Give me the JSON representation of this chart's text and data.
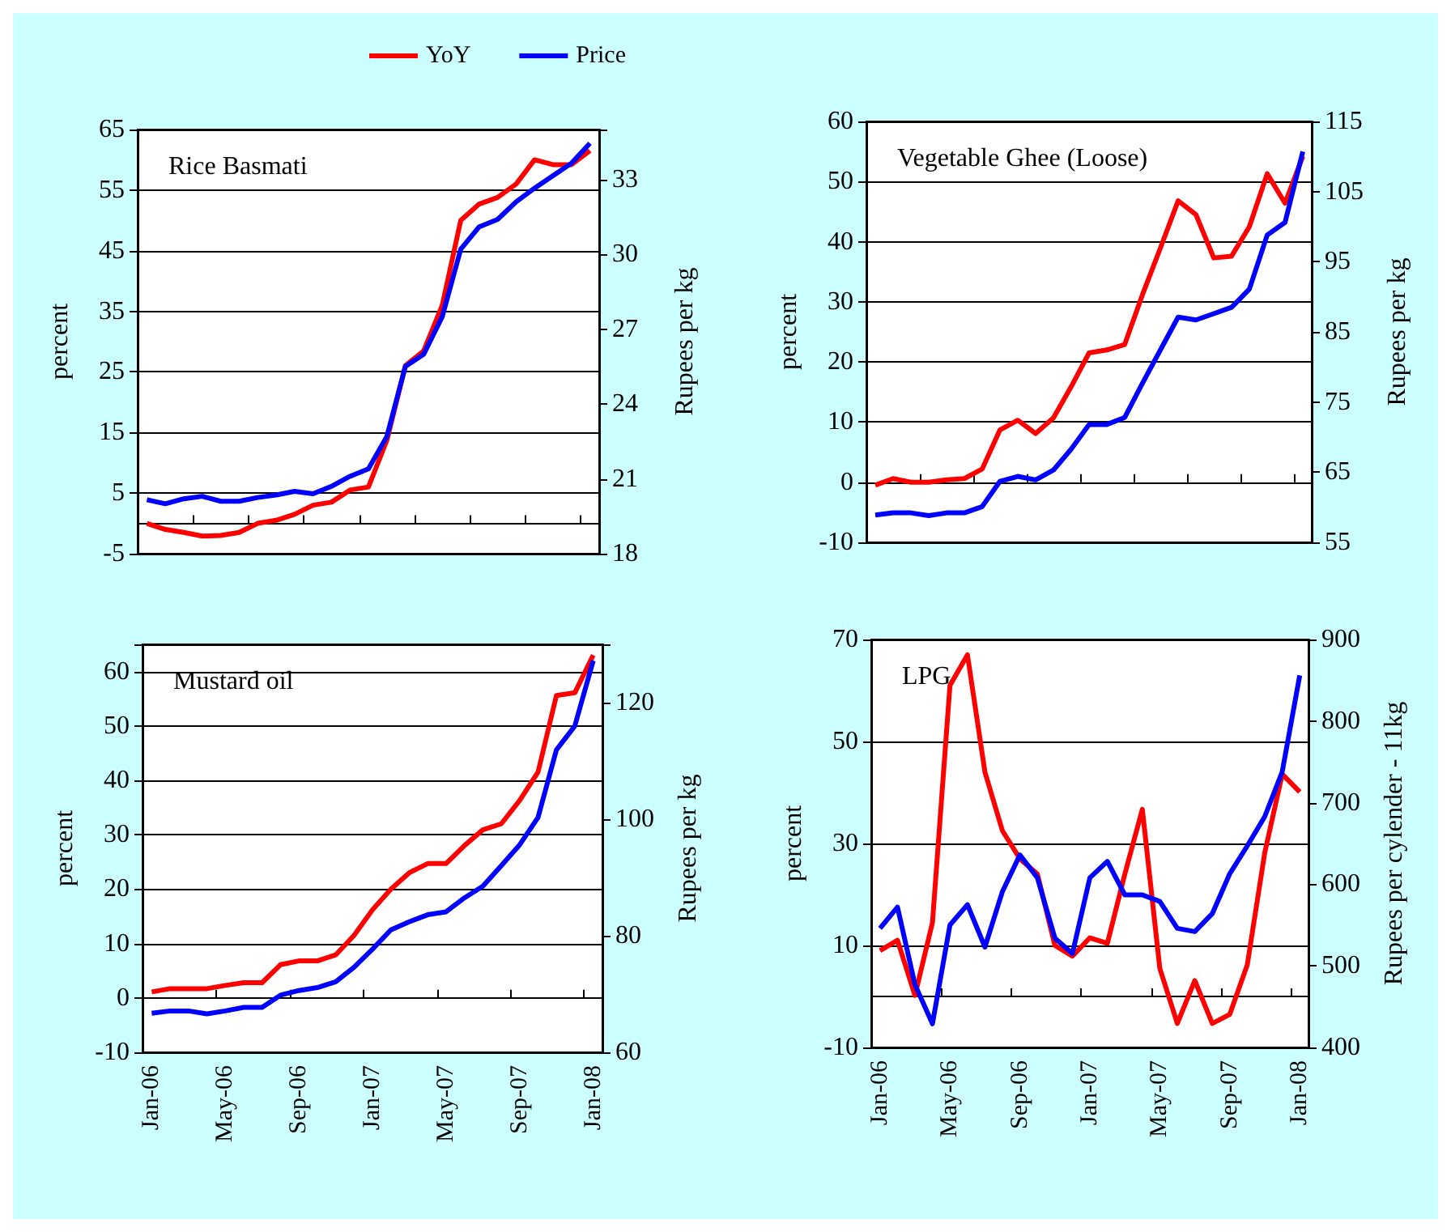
{
  "chart_data": [
    {
      "type": "line",
      "title": "Rice Basmati",
      "ylabel": "percent",
      "y2label": "Rupees per kg",
      "legend": "top",
      "grid": "y",
      "marker": "none",
      "tick_labels": "y",
      "categories": [
        null,
        null,
        null,
        null,
        null,
        null,
        null,
        null,
        null,
        null,
        null,
        null,
        null,
        null,
        null,
        null,
        null,
        null,
        null,
        null,
        null,
        null,
        null,
        null,
        null
      ],
      "ylim": [
        -5,
        65
      ],
      "yticks": [
        -5,
        5,
        15,
        25,
        35,
        45,
        55,
        65
      ],
      "y2lim": [
        18,
        35
      ],
      "y2ticks": [
        18,
        21,
        24,
        27,
        30,
        33
      ],
      "series": [
        {
          "name": "YoY",
          "color": "#ff0000",
          "values": [
            0,
            -1,
            -1.5,
            -2.1,
            -2,
            -1.5,
            0,
            0.5,
            1.5,
            3,
            3.5,
            5.5,
            6,
            13.7,
            26,
            28.5,
            36,
            50,
            52.7,
            53.8,
            56,
            60,
            59.2,
            59.2,
            61.5
          ]
        },
        {
          "name": "Price",
          "color": "#0000ff",
          "axis": "y2",
          "values": [
            20.16,
            20,
            20.2,
            20.3,
            20.1,
            20.1,
            20.25,
            20.35,
            20.5,
            20.4,
            20.7,
            21.1,
            21.4,
            22.7,
            25.5,
            26,
            27.5,
            30.2,
            31.1,
            31.4,
            32.1,
            32.65,
            33.15,
            33.65,
            34.45
          ]
        }
      ]
    },
    {
      "type": "line",
      "title": "Vegetable Ghee (Loose)",
      "ylabel": "percent",
      "y2label": "Rupees per kg",
      "grid": "y",
      "marker": "none",
      "tick_labels": "y",
      "categories": [
        null,
        null,
        null,
        null,
        null,
        null,
        null,
        null,
        null,
        null,
        null,
        null,
        null,
        null,
        null,
        null,
        null,
        null,
        null,
        null,
        null,
        null,
        null,
        null,
        null
      ],
      "ylim": [
        -10,
        60
      ],
      "yticks": [
        -10,
        0,
        10,
        20,
        30,
        40,
        50,
        60
      ],
      "y2lim": [
        55,
        115
      ],
      "y2ticks": [
        55,
        65,
        75,
        85,
        95,
        105,
        115
      ],
      "series": [
        {
          "name": "YoY",
          "color": "#ff0000",
          "values": [
            -0.5,
            0.6,
            0,
            0,
            0.4,
            0.6,
            2.2,
            8.7,
            10.3,
            8.1,
            10.7,
            15.9,
            21.5,
            22,
            22.9,
            31.2,
            38.9,
            46.8,
            44.5,
            37.3,
            37.6,
            42.5,
            51.3,
            46.4,
            54.2
          ]
        },
        {
          "name": "Price",
          "color": "#0000ff",
          "axis": "y2",
          "values": [
            58.9,
            59.2,
            59.2,
            58.8,
            59.2,
            59.2,
            60.1,
            63.7,
            64.4,
            63.9,
            65.3,
            68.3,
            71.8,
            71.8,
            72.8,
            77.7,
            82.4,
            87.1,
            86.7,
            87.6,
            88.5,
            91.1,
            98.8,
            100.6,
            110.7
          ]
        }
      ]
    },
    {
      "type": "line",
      "title": "Mustard oil",
      "ylabel": "percent",
      "y2label": "Rupees per kg",
      "grid": "y",
      "marker": "none",
      "categories": [
        "Jan-06",
        null,
        null,
        null,
        "May-06",
        null,
        null,
        null,
        "Sep-06",
        null,
        null,
        null,
        "Jan-07",
        null,
        null,
        null,
        "May-07",
        null,
        null,
        null,
        "Sep-07",
        null,
        null,
        null,
        "Jan-08"
      ],
      "ylim": [
        -10,
        65
      ],
      "yticks": [
        -10,
        0,
        10,
        20,
        30,
        40,
        50,
        60
      ],
      "y2lim": [
        60,
        130
      ],
      "y2ticks": [
        60,
        80,
        100,
        120
      ],
      "series": [
        {
          "name": "YoY",
          "color": "#ff0000",
          "values": [
            1.1,
            1.7,
            1.7,
            1.7,
            2.3,
            2.8,
            2.8,
            6.1,
            6.8,
            6.8,
            7.9,
            11.5,
            16.2,
            20,
            23,
            24.7,
            24.7,
            28,
            30.9,
            32,
            36.3,
            41.5,
            55.6,
            56.1,
            63
          ]
        },
        {
          "name": "Price",
          "color": "#0000ff",
          "axis": "y2",
          "values": [
            66.7,
            67.1,
            67.1,
            66.6,
            67.1,
            67.7,
            67.7,
            69.8,
            70.6,
            71.1,
            72.1,
            74.6,
            77.7,
            81,
            82.4,
            83.6,
            84.1,
            86.5,
            88.5,
            92,
            95.6,
            100.3,
            111.9,
            116,
            127.2
          ]
        }
      ]
    },
    {
      "type": "line",
      "title": "LPG",
      "ylabel": "percent",
      "y2label": "Rupees per cylender - 11kg",
      "grid": "y",
      "marker": "none",
      "categories": [
        "Jan-06",
        null,
        null,
        null,
        "May-06",
        null,
        null,
        null,
        "Sep-06",
        null,
        null,
        null,
        "Jan-07",
        null,
        null,
        null,
        "May-07",
        null,
        null,
        null,
        "Sep-07",
        null,
        null,
        null,
        "Jan-08"
      ],
      "ylim": [
        -10,
        70
      ],
      "yticks": [
        -10,
        10,
        30,
        50,
        70
      ],
      "y2lim": [
        400,
        900
      ],
      "y2ticks": [
        400,
        500,
        600,
        700,
        800,
        900
      ],
      "series": [
        {
          "name": "YoY",
          "color": "#ff0000",
          "values": [
            9,
            11,
            0.2,
            14.5,
            61,
            67,
            44,
            32.5,
            27,
            24,
            10,
            7.9,
            11.5,
            10.4,
            24,
            36.7,
            5.5,
            -5.3,
            3.1,
            -5.3,
            -3.5,
            6.2,
            28.2,
            43.6,
            40.1
          ]
        },
        {
          "name": "Price",
          "color": "#0000ff",
          "axis": "y2",
          "values": [
            546,
            572,
            477,
            429,
            550,
            575,
            523,
            591,
            636,
            608,
            534,
            515,
            608,
            628,
            587,
            587,
            579,
            546,
            542,
            564,
            613,
            647,
            683,
            738,
            856
          ]
        }
      ]
    }
  ]
}
